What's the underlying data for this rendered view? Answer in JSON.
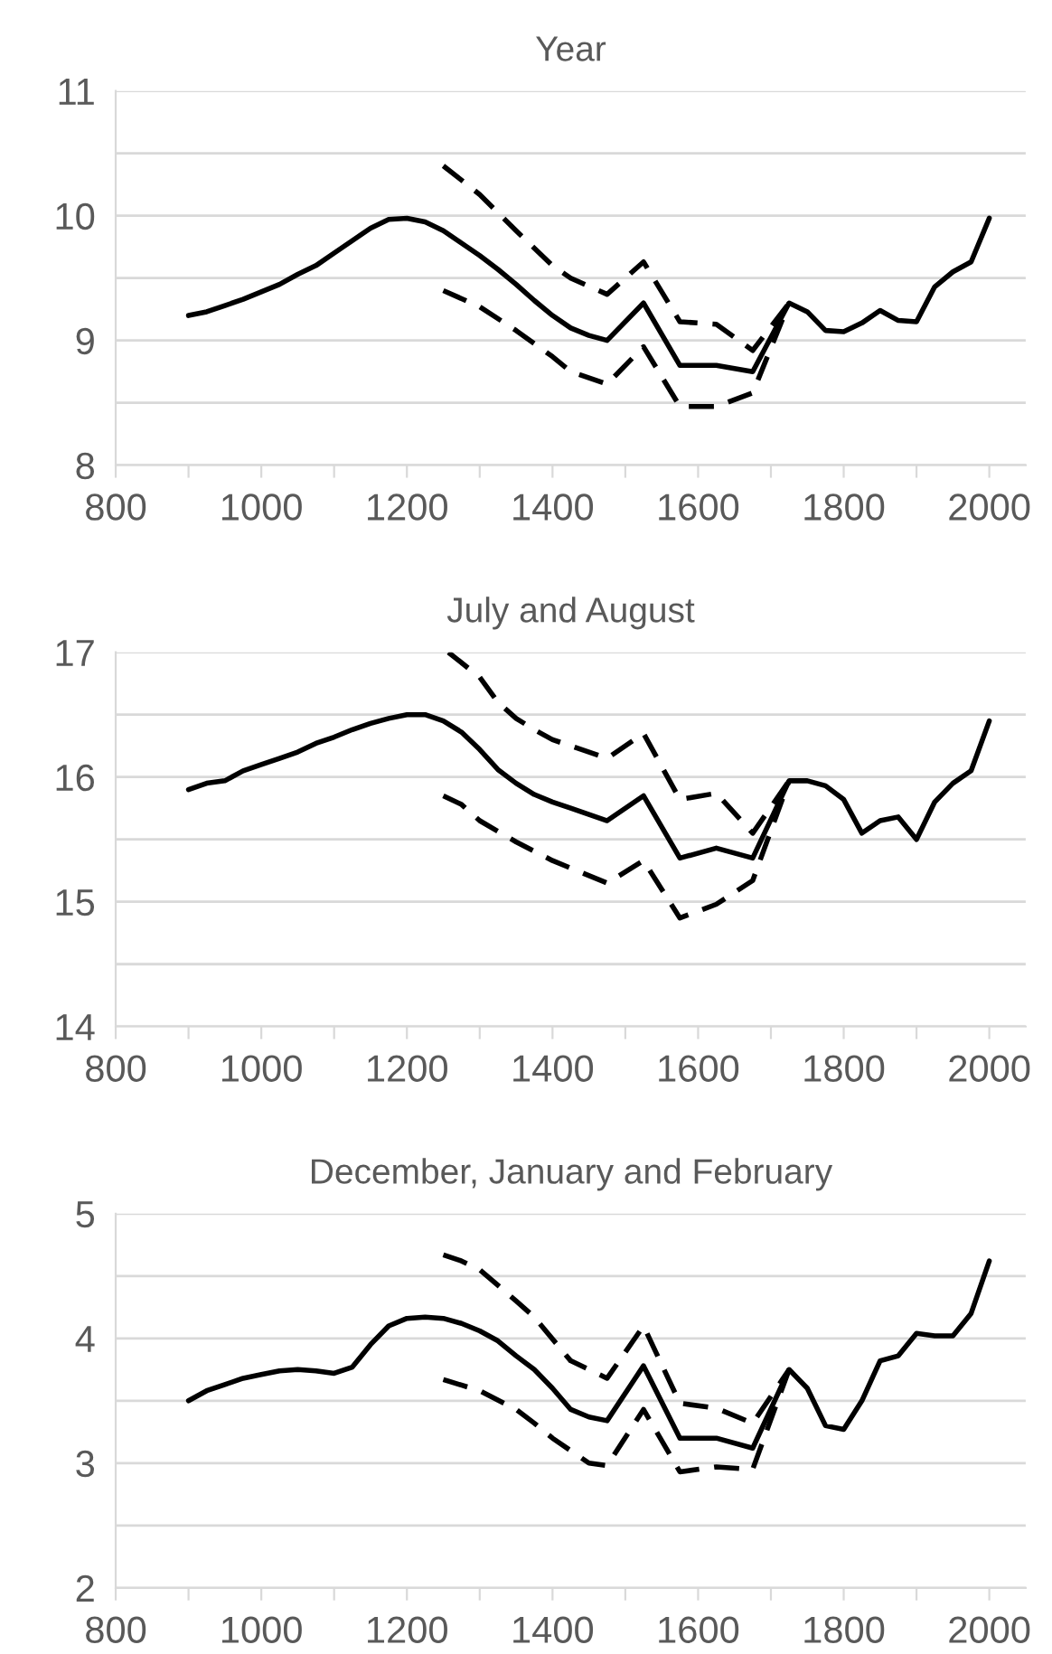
{
  "chart_data": [
    {
      "type": "line",
      "title": "Year",
      "xlim": [
        800,
        2050
      ],
      "xticks": [
        800,
        {
          "value": 900,
          "label": null
        },
        1000,
        {
          "value": 1100,
          "label": null
        },
        1200,
        {
          "value": 1300,
          "label": null
        },
        1400,
        {
          "value": 1500,
          "label": null
        },
        1600,
        {
          "value": 1700,
          "label": null
        },
        1800,
        {
          "value": 1900,
          "label": null
        },
        2000
      ],
      "ylim": [
        8,
        11
      ],
      "yticks": [
        8,
        {
          "value": 8.5,
          "label": null
        },
        9,
        {
          "value": 9.5,
          "label": null
        },
        10,
        {
          "value": 10.5,
          "label": null
        },
        11
      ],
      "grid": "y",
      "series": [
        {
          "color": "#000000",
          "line_style": "solid",
          "x": [
            900,
            925,
            950,
            975,
            1000,
            1025,
            1050,
            1075,
            1100,
            1125,
            1150,
            1175,
            1200,
            1225,
            1250,
            1275,
            1300,
            1325,
            1350,
            1375,
            1400,
            1425,
            1450,
            1475,
            1525,
            1575,
            1625,
            1675,
            1725,
            1750,
            1775,
            1800,
            1825,
            1850,
            1875,
            1900,
            1925,
            1950,
            1975,
            2000
          ],
          "values": [
            9.2,
            9.23,
            9.28,
            9.33,
            9.39,
            9.45,
            9.53,
            9.6,
            9.7,
            9.8,
            9.9,
            9.97,
            9.98,
            9.95,
            9.88,
            9.78,
            9.68,
            9.57,
            9.45,
            9.32,
            9.2,
            9.1,
            9.04,
            9.0,
            9.3,
            8.8,
            8.8,
            8.75,
            9.3,
            9.23,
            9.08,
            9.07,
            9.14,
            9.24,
            9.16,
            9.15,
            9.43,
            9.55,
            9.63,
            9.98
          ]
        },
        {
          "color": "#000000",
          "line_style": "dashed",
          "x": [
            1250,
            1300,
            1350,
            1400,
            1425,
            1475,
            1525,
            1575,
            1625,
            1675,
            1725
          ],
          "values": [
            10.4,
            10.17,
            9.88,
            9.6,
            9.5,
            9.37,
            9.63,
            9.15,
            9.13,
            8.92,
            9.3
          ]
        },
        {
          "color": "#000000",
          "line_style": "dashed",
          "x": [
            1250,
            1300,
            1350,
            1400,
            1425,
            1475,
            1525,
            1575,
            1625,
            1675,
            1725
          ],
          "values": [
            9.4,
            9.27,
            9.08,
            8.87,
            8.75,
            8.65,
            8.95,
            8.47,
            8.47,
            8.58,
            9.3
          ]
        }
      ]
    },
    {
      "type": "line",
      "title": "July and August",
      "xlim": [
        800,
        2050
      ],
      "xticks": [
        800,
        {
          "value": 900,
          "label": null
        },
        1000,
        {
          "value": 1100,
          "label": null
        },
        1200,
        {
          "value": 1300,
          "label": null
        },
        1400,
        {
          "value": 1500,
          "label": null
        },
        1600,
        {
          "value": 1700,
          "label": null
        },
        1800,
        {
          "value": 1900,
          "label": null
        },
        2000
      ],
      "ylim": [
        14,
        17
      ],
      "yticks": [
        14,
        {
          "value": 14.5,
          "label": null
        },
        15,
        {
          "value": 15.5,
          "label": null
        },
        16,
        {
          "value": 16.5,
          "label": null
        },
        17
      ],
      "grid": "y",
      "series": [
        {
          "color": "#000000",
          "line_style": "solid",
          "x": [
            900,
            925,
            950,
            975,
            1000,
            1025,
            1050,
            1075,
            1100,
            1125,
            1150,
            1175,
            1200,
            1225,
            1250,
            1275,
            1300,
            1325,
            1350,
            1375,
            1400,
            1425,
            1450,
            1475,
            1525,
            1575,
            1625,
            1675,
            1725,
            1750,
            1775,
            1800,
            1825,
            1850,
            1875,
            1900,
            1925,
            1950,
            1975,
            2000
          ],
          "values": [
            15.9,
            15.95,
            15.97,
            16.05,
            16.1,
            16.15,
            16.2,
            16.27,
            16.32,
            16.38,
            16.43,
            16.47,
            16.5,
            16.5,
            16.45,
            16.36,
            16.22,
            16.06,
            15.95,
            15.86,
            15.8,
            15.75,
            15.7,
            15.65,
            15.85,
            15.35,
            15.43,
            15.35,
            15.97,
            15.97,
            15.93,
            15.82,
            15.55,
            15.65,
            15.68,
            15.5,
            15.8,
            15.95,
            16.05,
            16.45
          ]
        },
        {
          "color": "#000000",
          "line_style": "dashed",
          "x": [
            1257,
            1300,
            1325,
            1350,
            1375,
            1400,
            1425,
            1475,
            1525,
            1575,
            1625,
            1675,
            1725
          ],
          "values": [
            17.0,
            16.8,
            16.6,
            16.47,
            16.38,
            16.3,
            16.25,
            16.15,
            16.35,
            15.82,
            15.87,
            15.55,
            15.97
          ]
        },
        {
          "color": "#000000",
          "line_style": "dashed",
          "x": [
            1250,
            1275,
            1300,
            1350,
            1400,
            1425,
            1475,
            1525,
            1575,
            1625,
            1675,
            1725
          ],
          "values": [
            15.85,
            15.78,
            15.65,
            15.48,
            15.33,
            15.27,
            15.15,
            15.33,
            14.87,
            14.98,
            15.17,
            15.97
          ]
        }
      ]
    },
    {
      "type": "line",
      "title": "December, January and February",
      "xlim": [
        800,
        2050
      ],
      "xticks": [
        800,
        {
          "value": 900,
          "label": null
        },
        1000,
        {
          "value": 1100,
          "label": null
        },
        1200,
        {
          "value": 1300,
          "label": null
        },
        1400,
        {
          "value": 1500,
          "label": null
        },
        1600,
        {
          "value": 1700,
          "label": null
        },
        1800,
        {
          "value": 1900,
          "label": null
        },
        2000
      ],
      "ylim": [
        2,
        5
      ],
      "yticks": [
        2,
        {
          "value": 2.5,
          "label": null
        },
        3,
        {
          "value": 3.5,
          "label": null
        },
        4,
        {
          "value": 4.5,
          "label": null
        },
        5
      ],
      "grid": "y",
      "series": [
        {
          "color": "#000000",
          "line_style": "solid",
          "x": [
            900,
            925,
            950,
            975,
            1000,
            1025,
            1050,
            1075,
            1100,
            1125,
            1150,
            1175,
            1200,
            1225,
            1250,
            1275,
            1300,
            1325,
            1350,
            1375,
            1400,
            1425,
            1450,
            1475,
            1525,
            1575,
            1625,
            1675,
            1725,
            1750,
            1775,
            1800,
            1825,
            1850,
            1875,
            1900,
            1925,
            1950,
            1975,
            2000
          ],
          "values": [
            3.5,
            3.58,
            3.63,
            3.68,
            3.71,
            3.74,
            3.75,
            3.74,
            3.72,
            3.77,
            3.95,
            4.1,
            4.16,
            4.17,
            4.16,
            4.12,
            4.06,
            3.98,
            3.86,
            3.75,
            3.6,
            3.43,
            3.37,
            3.34,
            3.78,
            3.2,
            3.2,
            3.12,
            3.75,
            3.6,
            3.3,
            3.27,
            3.5,
            3.82,
            3.86,
            4.04,
            4.02,
            4.02,
            4.2,
            4.62
          ]
        },
        {
          "color": "#000000",
          "line_style": "dashed",
          "x": [
            1250,
            1275,
            1300,
            1350,
            1375,
            1425,
            1475,
            1525,
            1575,
            1625,
            1675,
            1725
          ],
          "values": [
            4.67,
            4.62,
            4.55,
            4.3,
            4.17,
            3.82,
            3.68,
            4.1,
            3.48,
            3.44,
            3.32,
            3.75
          ]
        },
        {
          "color": "#000000",
          "line_style": "dashed",
          "x": [
            1250,
            1300,
            1350,
            1375,
            1400,
            1450,
            1475,
            1525,
            1575,
            1625,
            1675,
            1725
          ],
          "values": [
            3.67,
            3.58,
            3.43,
            3.32,
            3.2,
            3.0,
            2.98,
            3.43,
            2.93,
            2.97,
            2.95,
            3.75
          ]
        }
      ]
    }
  ]
}
